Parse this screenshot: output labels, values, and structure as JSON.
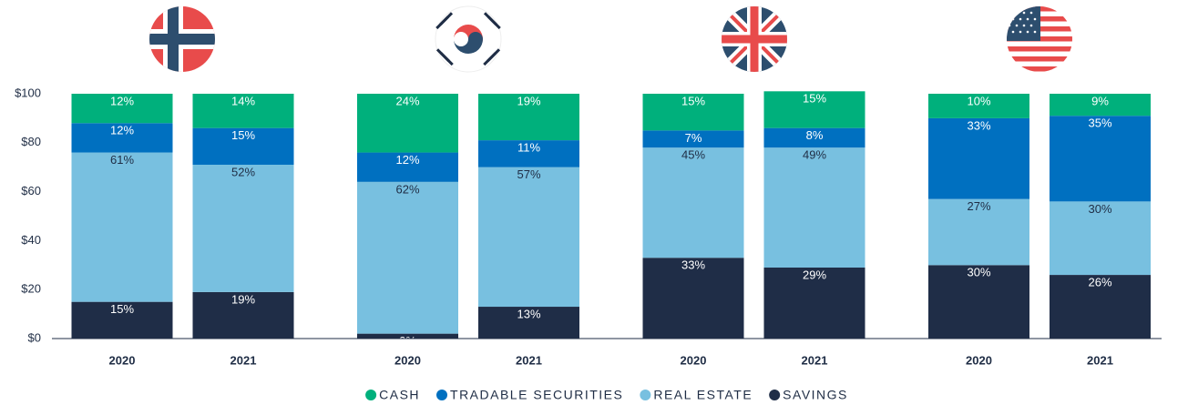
{
  "chart_data": {
    "type": "bar",
    "stacked": true,
    "categories": [
      "2020",
      "2021",
      "2020",
      "2021",
      "2020",
      "2021",
      "2020",
      "2021"
    ],
    "series": [
      {
        "name": "SAVINGS",
        "color": "#1f2d47",
        "text_color": "#ffffff",
        "values": [
          15,
          19,
          2,
          13,
          33,
          29,
          30,
          26
        ],
        "value_labels": [
          "15%",
          "19%",
          "2%",
          "13%",
          "33%",
          "29%",
          "30%",
          "26%"
        ]
      },
      {
        "name": "REAL ESTATE",
        "color": "#78c0e0",
        "text_color": "#1f2d45",
        "values": [
          61,
          52,
          62,
          57,
          45,
          49,
          27,
          30
        ],
        "value_labels": [
          "61%",
          "52%",
          "62%",
          "57%",
          "45%",
          "49%",
          "27%",
          "30%"
        ]
      },
      {
        "name": "TRADABLE SECURITIES",
        "color": "#0070c0",
        "text_color": "#ffffff",
        "values": [
          12,
          15,
          12,
          11,
          7,
          8,
          33,
          35
        ],
        "value_labels": [
          "12%",
          "15%",
          "12%",
          "11%",
          "7%",
          "8%",
          "33%",
          "35%"
        ]
      },
      {
        "name": "CASH",
        "color": "#00b07c",
        "text_color": "#ffffff",
        "values": [
          12,
          14,
          24,
          19,
          15,
          15,
          10,
          9
        ],
        "value_labels": [
          "12%",
          "14%",
          "24%",
          "19%",
          "15%",
          "15%",
          "10%",
          "9%"
        ]
      }
    ],
    "ylim": [
      0,
      100
    ],
    "yticks": [
      {
        "value": 0,
        "label": "$0"
      },
      {
        "value": 20,
        "label": "$20"
      },
      {
        "value": 40,
        "label": "$40"
      },
      {
        "value": 60,
        "label": "$60"
      },
      {
        "value": 80,
        "label": "$80"
      },
      {
        "value": 100,
        "label": "$100"
      }
    ],
    "legend": "bottom"
  }
}
